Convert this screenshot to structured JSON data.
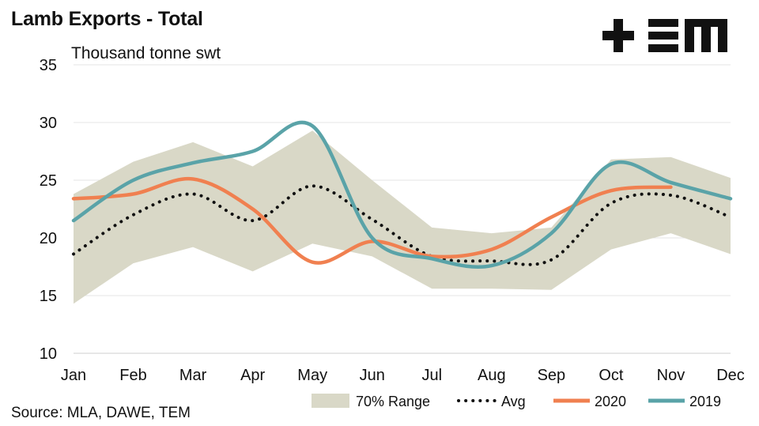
{
  "title": "Lamb Exports - Total",
  "unit_label": "Thousand tonne swt",
  "source": "Source: MLA, DAWE, TEM",
  "logo_text": "+EM",
  "colors": {
    "range": "#d9d8c7",
    "avg": "#111111",
    "s2020": "#f08050",
    "s2019": "#5aa3a8",
    "grid": "#e6e6e6"
  },
  "legend": {
    "range": "70% Range",
    "avg": "Avg",
    "s2020": "2020",
    "s2019": "2019"
  },
  "chart_data": {
    "type": "line",
    "categories": [
      "Jan",
      "Feb",
      "Mar",
      "Apr",
      "May",
      "Jun",
      "Jul",
      "Aug",
      "Sep",
      "Oct",
      "Nov",
      "Dec"
    ],
    "ylim": [
      10,
      35
    ],
    "yticks": [
      10,
      15,
      20,
      25,
      30,
      35
    ],
    "grid": true,
    "legend_position": "bottom",
    "range": {
      "name": "70% Range",
      "upper": [
        23.8,
        26.6,
        28.3,
        26.2,
        29.3,
        25.0,
        20.9,
        20.4,
        20.9,
        26.8,
        27.0,
        25.2
      ],
      "lower": [
        14.3,
        17.8,
        19.2,
        17.1,
        19.5,
        18.4,
        15.6,
        15.6,
        15.5,
        19.0,
        20.4,
        18.6
      ]
    },
    "series": [
      {
        "name": "Avg",
        "style": "dotted",
        "values": [
          18.6,
          22.0,
          23.8,
          21.5,
          24.5,
          21.6,
          18.4,
          18.0,
          18.1,
          23.0,
          23.7,
          21.8
        ]
      },
      {
        "name": "2020",
        "values": [
          23.4,
          23.8,
          25.1,
          22.5,
          17.9,
          19.7,
          18.4,
          19.0,
          21.8,
          24.1,
          24.4,
          null
        ]
      },
      {
        "name": "2019",
        "values": [
          21.5,
          25.0,
          26.5,
          27.5,
          29.7,
          20.0,
          18.2,
          17.6,
          20.4,
          26.4,
          24.8,
          23.4
        ]
      }
    ]
  }
}
